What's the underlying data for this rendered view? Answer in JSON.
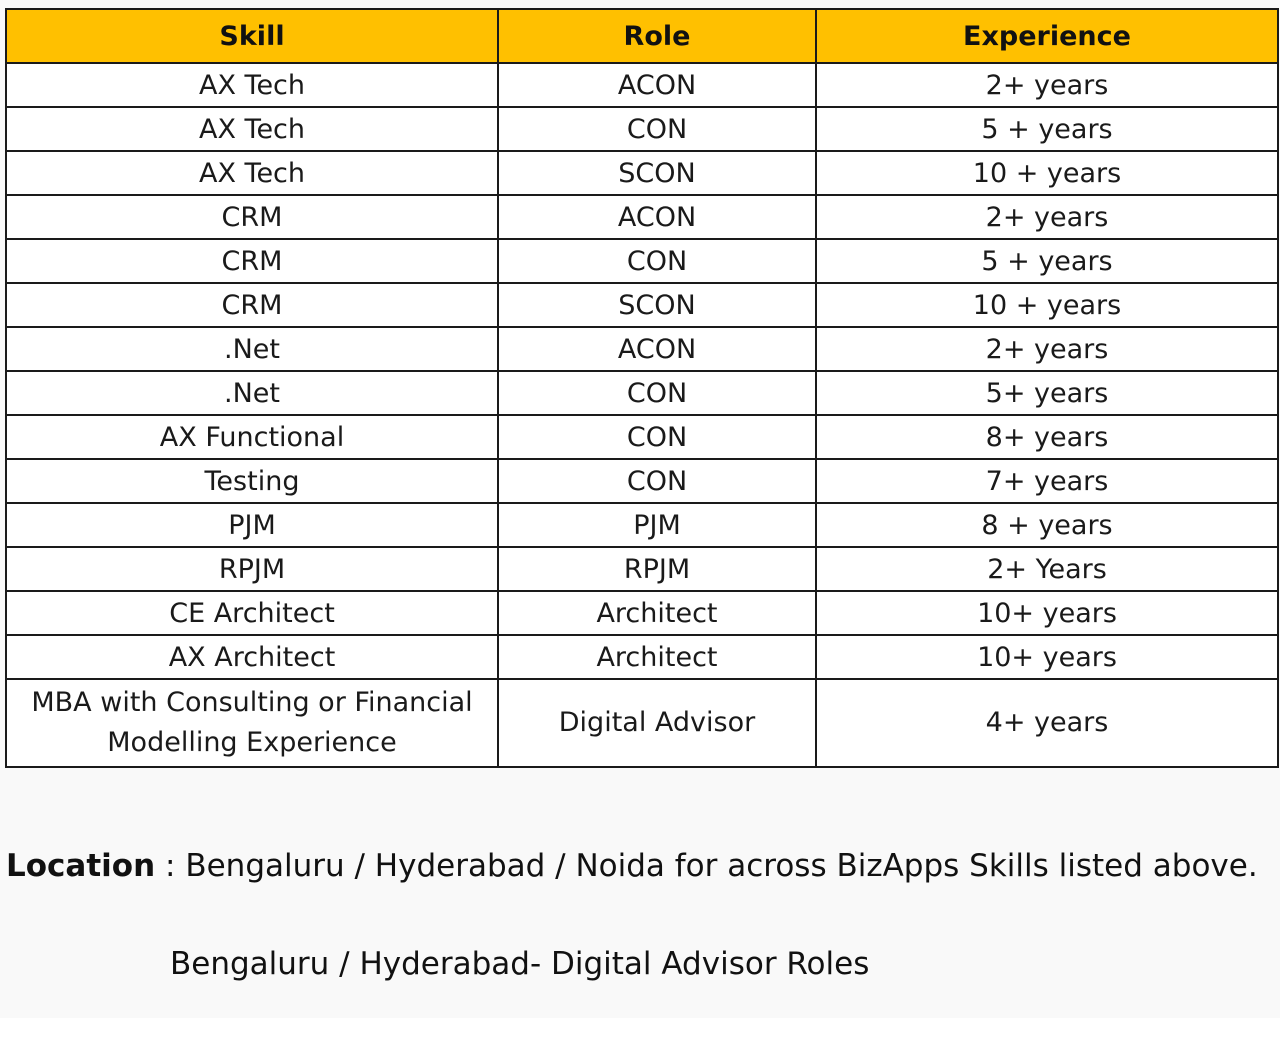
{
  "table": {
    "headers": {
      "skill": "Skill",
      "role": "Role",
      "experience": "Experience"
    },
    "rows": [
      {
        "skill": "AX Tech",
        "role": "ACON",
        "experience": "2+ years"
      },
      {
        "skill": "AX Tech",
        "role": "CON",
        "experience": "5 + years"
      },
      {
        "skill": "AX Tech",
        "role": "SCON",
        "experience": "10 + years"
      },
      {
        "skill": "CRM",
        "role": "ACON",
        "experience": "2+ years"
      },
      {
        "skill": "CRM",
        "role": "CON",
        "experience": "5 + years"
      },
      {
        "skill": "CRM",
        "role": "SCON",
        "experience": "10 + years"
      },
      {
        "skill": ".Net",
        "role": "ACON",
        "experience": "2+ years"
      },
      {
        "skill": ".Net",
        "role": "CON",
        "experience": "5+ years"
      },
      {
        "skill": "AX Functional",
        "role": "CON",
        "experience": "8+ years"
      },
      {
        "skill": "Testing",
        "role": "CON",
        "experience": "7+ years"
      },
      {
        "skill": "PJM",
        "role": "PJM",
        "experience": "8 + years"
      },
      {
        "skill": "RPJM",
        "role": "RPJM",
        "experience": "2+ Years"
      },
      {
        "skill": "CE Architect",
        "role": "Architect",
        "experience": "10+ years"
      },
      {
        "skill": "AX Architect",
        "role": "Architect",
        "experience": "10+ years"
      },
      {
        "skill_line1": "MBA with Consulting or Financial",
        "skill_line2": "Modelling Experience",
        "role": "Digital Advisor",
        "experience": "4+ years"
      }
    ]
  },
  "location": {
    "label": "Location",
    "separator": " : ",
    "text": "Bengaluru / Hyderabad / Noida for across BizApps Skills listed above.",
    "second_line": "Bengaluru / Hyderabad- Digital Advisor Roles"
  },
  "colors": {
    "header_fill": "#ffc000",
    "border": "#1a1a1a",
    "page_background": "#f9f9f9"
  }
}
